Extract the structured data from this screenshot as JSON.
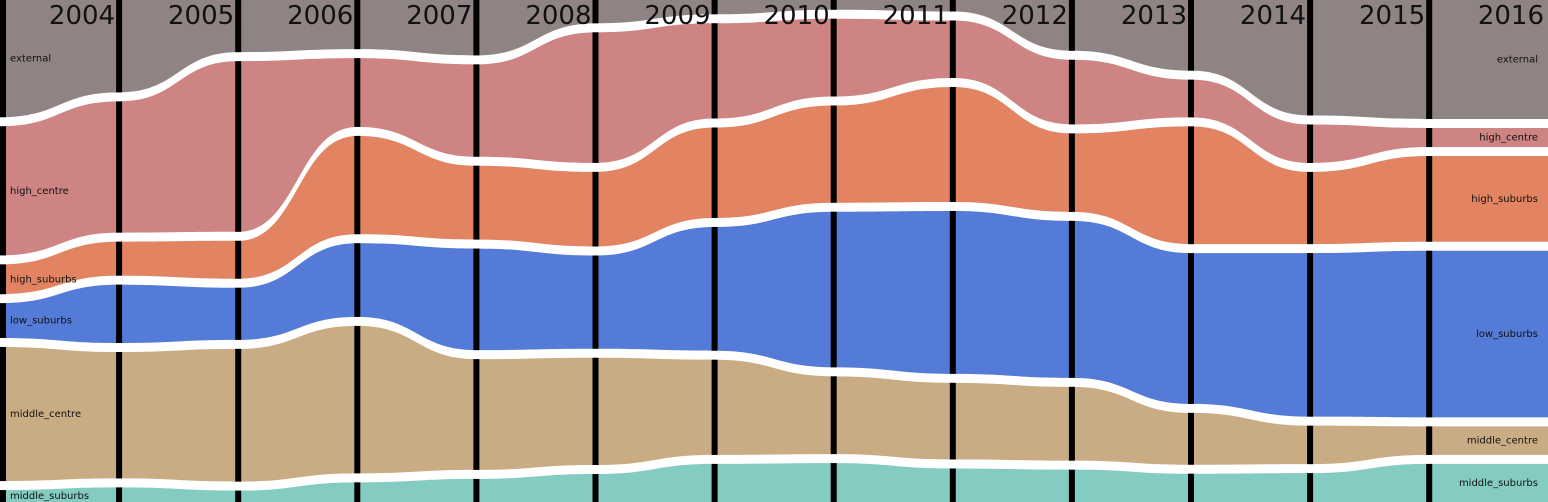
{
  "chart_data": {
    "type": "alluvial",
    "years": [
      "2004",
      "2005",
      "2006",
      "2007",
      "2008",
      "2009",
      "2010",
      "2011",
      "2012",
      "2013",
      "2014",
      "2015",
      "2016"
    ],
    "series": [
      {
        "name": "external",
        "color": "#857a78",
        "values": [
          118,
          95,
          55,
          50,
          60,
          25,
          15,
          10,
          12,
          55,
          75,
          120,
          125
        ]
      },
      {
        "name": "high_centre",
        "color": "#c97a78",
        "values": [
          130,
          135,
          180,
          70,
          100,
          140,
          100,
          80,
          60,
          70,
          40,
          40,
          20
        ]
      },
      {
        "name": "high_suburbs",
        "color": "#e07a55",
        "values": [
          30,
          35,
          40,
          100,
          80,
          80,
          95,
          100,
          120,
          85,
          125,
          75,
          90
        ]
      },
      {
        "name": "low_suburbs",
        "color": "#4570d4",
        "values": [
          35,
          60,
          55,
          75,
          110,
          100,
          130,
          160,
          170,
          170,
          160,
          170,
          175
        ]
      },
      {
        "name": "middle_centre",
        "color": "#c4a57a",
        "values": [
          135,
          130,
          140,
          150,
          120,
          115,
          100,
          80,
          80,
          80,
          55,
          40,
          30
        ]
      },
      {
        "name": "middle_suburbs",
        "color": "#79c8bc",
        "values": [
          12,
          15,
          12,
          20,
          25,
          30,
          40,
          40,
          35,
          35,
          30,
          30,
          40
        ]
      }
    ]
  }
}
